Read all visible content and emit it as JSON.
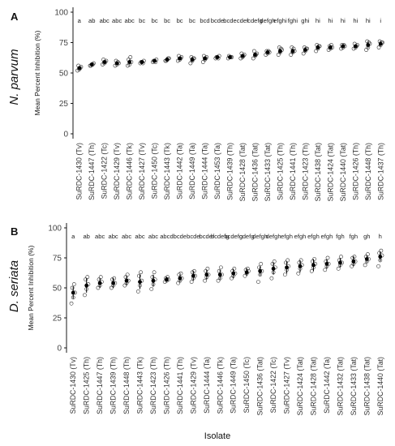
{
  "x_label": "Isolate",
  "colors": {
    "point_stroke": "#333333",
    "mean": "#000000",
    "axis": "#000000"
  },
  "chart_data": [
    {
      "type": "scatter",
      "panel": "A",
      "species": "N. parvum",
      "ylabel": "Mean Percent Inhibition (%)",
      "xlabel": "Isolate",
      "ylim": [
        0,
        100
      ],
      "yticks": [
        0,
        25,
        50,
        75,
        100
      ],
      "grid": false,
      "categories": [
        "SuRDC-1430 (Tv)",
        "SuRDC-1447 (Th)",
        "SuRDC-1422 (Tc)",
        "SuRDC-1429 (Tv)",
        "SuRDC-1446 (Tk)",
        "SuRDC-1427 (Tv)",
        "SuRDC-1450 (Tc)",
        "SuRDC-1443 (Tk)",
        "SuRDC-1442 (Ta)",
        "SuRDC-1449 (Ta)",
        "SuRDC-1444 (Ta)",
        "SuRDC-1453 (Ta)",
        "SuRDC-1439 (Th)",
        "SuRDC-1428 (Tat)",
        "SuRDC-1436 (Tat)",
        "SuRDC-1433 (Tat)",
        "SuRDC-1425 (Th)",
        "SuRDC-1441 (Th)",
        "SuRDC-1423 (Th)",
        "SuRDC-1438 (Tat)",
        "SuRDC-1424 (Tat)",
        "SuRDC-1440 (Tat)",
        "SuRDC-1426 (Th)",
        "SuRDC-1448 (Th)",
        "SuRDC-1437 (Th)"
      ],
      "means": [
        54,
        57,
        59,
        58,
        59,
        59,
        60,
        61,
        62,
        61,
        62,
        63,
        63,
        64,
        65,
        67,
        68,
        68,
        69,
        71,
        71,
        72,
        72,
        73,
        74
      ],
      "sd": [
        1.5,
        1.0,
        1.2,
        1.3,
        2.0,
        1.0,
        1.0,
        1.2,
        1.3,
        1.8,
        1.6,
        1.0,
        0.8,
        1.4,
        1.8,
        1.2,
        2.0,
        2.2,
        1.8,
        1.6,
        1.2,
        1.2,
        1.3,
        2.5,
        1.8
      ],
      "replicates": [
        [
          52,
          53,
          55,
          56,
          54
        ],
        [
          56,
          57,
          58,
          56,
          57
        ],
        [
          57,
          58,
          60,
          61,
          59
        ],
        [
          56,
          57,
          58,
          60,
          59
        ],
        [
          56,
          57,
          59,
          61,
          63
        ],
        [
          58,
          59,
          60,
          59,
          58
        ],
        [
          59,
          60,
          61,
          60,
          59
        ],
        [
          60,
          61,
          62,
          60,
          62
        ],
        [
          60,
          61,
          63,
          64,
          62
        ],
        [
          58,
          60,
          62,
          63,
          62
        ],
        [
          59,
          61,
          63,
          64,
          62
        ],
        [
          62,
          63,
          64,
          63,
          62
        ],
        [
          62,
          63,
          63,
          64,
          63
        ],
        [
          62,
          63,
          65,
          66,
          64
        ],
        [
          62,
          64,
          66,
          68,
          65
        ],
        [
          65,
          66,
          67,
          68,
          68
        ],
        [
          65,
          67,
          69,
          71,
          70
        ],
        [
          65,
          67,
          68,
          71,
          70
        ],
        [
          66,
          68,
          70,
          71,
          70
        ],
        [
          68,
          70,
          72,
          73,
          72
        ],
        [
          69,
          70,
          71,
          72,
          73
        ],
        [
          70,
          71,
          72,
          73,
          73
        ],
        [
          70,
          71,
          73,
          74,
          72
        ],
        [
          69,
          71,
          74,
          76,
          75
        ],
        [
          71,
          73,
          75,
          76,
          75
        ]
      ],
      "letters": [
        "a",
        "ab",
        "abc",
        "abc",
        "abc",
        "bc",
        "bc",
        "bc",
        "bc",
        "bc",
        "bcd",
        "bcde",
        "bcde",
        "cdef",
        "cdefg",
        "defgh",
        "efghi",
        "fghi",
        "ghi",
        "hi",
        "hi",
        "hi",
        "hi",
        "hi",
        "i"
      ]
    },
    {
      "type": "scatter",
      "panel": "B",
      "species": "D. seriata",
      "ylabel": "Mean Percent Inhibition (%)",
      "xlabel": "Isolate",
      "ylim": [
        0,
        100
      ],
      "yticks": [
        0,
        25,
        50,
        75,
        100
      ],
      "grid": false,
      "categories": [
        "SuRDC-1430 (Tv)",
        "SuRDC-1425 (Th)",
        "SuRDC-1447 (Th)",
        "SuRDC-1439 (Th)",
        "SuRDC-1448 (Th)",
        "SuRDC-1443 (Tk)",
        "SuRDC-1423 (Th)",
        "SuRDC-1426 (Th)",
        "SuRDC-1441 (Th)",
        "SuRDC-1429 (Tv)",
        "SuRDC-1444 (Ta)",
        "SuRDC-1446 (Tk)",
        "SuRDC-1449 (Ta)",
        "SuRDC-1450 (Tc)",
        "SuRDC-1436 (Tat)",
        "SuRDC-1422 (Tc)",
        "SuRDC-1427 (Tv)",
        "SuRDC-1424 (Tat)",
        "SuRDC-1428 (Tat)",
        "SuRDC-1442 (Ta)",
        "SuRDC-1432 (Tat)",
        "SuRDC-1433 (Tat)",
        "SuRDC-1438 (Tat)",
        "SuRDC-1440 (Tat)"
      ],
      "means": [
        46,
        52,
        54,
        54,
        56,
        55,
        56,
        57,
        58,
        60,
        61,
        61,
        62,
        63,
        64,
        66,
        67,
        68,
        69,
        70,
        71,
        72,
        74,
        76
      ],
      "sd": [
        5,
        6,
        4,
        4,
        4,
        6,
        5,
        2,
        3,
        4,
        4,
        4,
        4,
        3,
        4,
        5,
        5,
        5,
        5,
        4,
        4,
        4,
        3,
        4
      ],
      "replicates": [
        [
          37,
          42,
          46,
          50,
          53
        ],
        [
          44,
          49,
          53,
          57,
          59
        ],
        [
          50,
          52,
          55,
          57,
          59
        ],
        [
          50,
          52,
          54,
          57,
          58
        ],
        [
          52,
          54,
          56,
          59,
          61
        ],
        [
          47,
          52,
          56,
          60,
          63
        ],
        [
          49,
          53,
          57,
          59,
          63
        ],
        [
          55,
          56,
          57,
          58,
          59
        ],
        [
          54,
          56,
          58,
          61,
          62
        ],
        [
          55,
          58,
          60,
          63,
          64
        ],
        [
          56,
          59,
          61,
          64,
          66
        ],
        [
          56,
          58,
          61,
          64,
          67
        ],
        [
          58,
          60,
          62,
          64,
          66
        ],
        [
          60,
          62,
          64,
          65,
          66
        ],
        [
          55,
          61,
          64,
          67,
          70
        ],
        [
          58,
          63,
          67,
          70,
          72
        ],
        [
          61,
          65,
          68,
          71,
          73
        ],
        [
          62,
          66,
          69,
          71,
          73
        ],
        [
          64,
          67,
          70,
          72,
          74
        ],
        [
          65,
          68,
          70,
          72,
          75
        ],
        [
          66,
          69,
          71,
          73,
          76
        ],
        [
          68,
          70,
          72,
          75,
          76
        ],
        [
          69,
          72,
          74,
          76,
          78
        ],
        [
          68,
          73,
          77,
          79,
          81
        ]
      ],
      "letters": [
        "a",
        "ab",
        "abc",
        "abc",
        "abc",
        "abc",
        "abc",
        "abcd",
        "bcde",
        "bcde",
        "bcdef",
        "bcdefg",
        "bcdefg",
        "cdefg",
        "defgh",
        "defgh",
        "efgh",
        "efgh",
        "efgh",
        "efgh",
        "fgh",
        "fgh",
        "gh",
        "h"
      ]
    }
  ]
}
